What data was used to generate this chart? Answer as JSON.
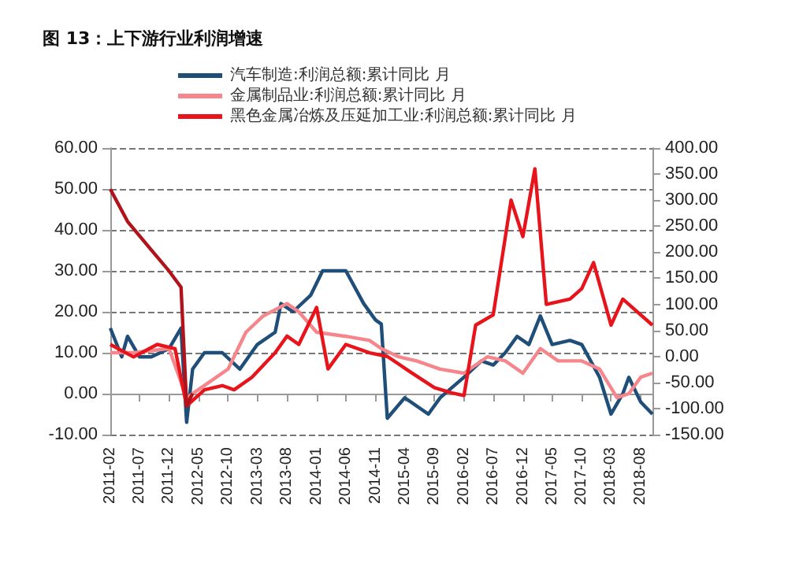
{
  "chart_data": {
    "type": "line",
    "title": "图 13：上下游行业利润增速",
    "xlim": [
      "2011-02",
      "2018-10"
    ],
    "xticks": [
      "2011-02",
      "2011-07",
      "2011-12",
      "2012-05",
      "2012-10",
      "2013-03",
      "2013-08",
      "2014-01",
      "2014-06",
      "2014-11",
      "2015-04",
      "2015-09",
      "2016-02",
      "2016-07",
      "2016-12",
      "2017-05",
      "2017-10",
      "2018-03",
      "2018-08"
    ],
    "ylim": [
      -10,
      60
    ],
    "yticks": [
      {
        "value": -10,
        "label": "-10.00"
      },
      {
        "value": 0,
        "label": "0.00"
      },
      {
        "value": 10,
        "label": "10.00"
      },
      {
        "value": 20,
        "label": "20.00"
      },
      {
        "value": 30,
        "label": "30.00"
      },
      {
        "value": 40,
        "label": "40.00"
      },
      {
        "value": 50,
        "label": "50.00"
      },
      {
        "value": 60,
        "label": "60.00"
      }
    ],
    "y2lim": [
      -150,
      400
    ],
    "y2ticks": [
      {
        "value": -150,
        "label": "-150.00"
      },
      {
        "value": -100,
        "label": "-100.00"
      },
      {
        "value": -50,
        "label": "-50.00"
      },
      {
        "value": 0,
        "label": "0.00"
      },
      {
        "value": 50,
        "label": "50.00"
      },
      {
        "value": 100,
        "label": "100.00"
      },
      {
        "value": 150,
        "label": "150.00"
      },
      {
        "value": 200,
        "label": "200.00"
      },
      {
        "value": 250,
        "label": "250.00"
      },
      {
        "value": 300,
        "label": "300.00"
      },
      {
        "value": 350,
        "label": "350.00"
      },
      {
        "value": 400,
        "label": "400.00"
      }
    ],
    "grid": "y",
    "legend": "top",
    "marker": "none",
    "line_style": "solid",
    "series": [
      {
        "name": "汽车制造:利润总额:累计同比 月",
        "color": "#1f4e79",
        "x": [
          "2011-02",
          "2011-04",
          "2011-05",
          "2011-07",
          "2011-09",
          "2011-12",
          "2012-02",
          "2012-03",
          "2012-04",
          "2012-06",
          "2012-09",
          "2012-12",
          "2013-03",
          "2013-06",
          "2013-07",
          "2013-09",
          "2013-12",
          "2014-02",
          "2014-06",
          "2014-09",
          "2014-11",
          "2014-12",
          "2015-01",
          "2015-04",
          "2015-08",
          "2015-10",
          "2016-02",
          "2016-05",
          "2016-07",
          "2016-09",
          "2016-11",
          "2017-01",
          "2017-03",
          "2017-05",
          "2017-08",
          "2017-10",
          "2018-01",
          "2018-03",
          "2018-05",
          "2018-06",
          "2018-08",
          "2018-10"
        ],
        "values": [
          16,
          9,
          14,
          9,
          9,
          11,
          16,
          -7,
          6,
          10,
          10,
          6,
          12,
          15,
          22,
          20,
          24,
          30,
          30,
          22,
          18,
          17,
          -6,
          -1,
          -5,
          -1,
          4,
          8,
          7,
          10,
          14,
          12,
          19,
          12,
          13,
          12,
          4,
          -5,
          0,
          4,
          -2,
          -5
        ]
      },
      {
        "name": "金属制品业:利润总额:累计同比 月",
        "color": "#f4868c",
        "x": [
          "2011-02",
          "2011-06",
          "2011-12",
          "2012-03",
          "2012-06",
          "2012-10",
          "2013-01",
          "2013-04",
          "2013-08",
          "2013-10",
          "2014-01",
          "2014-06",
          "2014-10",
          "2014-12",
          "2015-03",
          "2015-06",
          "2015-10",
          "2016-02",
          "2016-06",
          "2016-09",
          "2016-12",
          "2017-03",
          "2017-06",
          "2017-10",
          "2018-01",
          "2018-04",
          "2018-06",
          "2018-08",
          "2018-10"
        ],
        "values": [
          10,
          10,
          11,
          -1,
          2,
          6,
          15,
          19,
          22,
          20,
          15,
          14,
          13,
          11,
          9,
          8,
          6,
          5,
          9,
          8,
          5,
          11,
          8,
          8,
          6,
          -1,
          0,
          4,
          5
        ]
      },
      {
        "name": "黑色金属冶炼及压延加工业:利润总额:累计同比 月",
        "color": "#e8141b",
        "axis": "y2",
        "x": [
          "2011-02",
          "2011-06",
          "2011-10",
          "2012-01",
          "2012-03",
          "2012-06",
          "2012-09",
          "2012-11",
          "2013-02",
          "2013-06",
          "2013-08",
          "2013-10",
          "2014-01",
          "2014-03",
          "2014-06",
          "2014-10",
          "2015-01",
          "2015-05",
          "2015-09",
          "2015-12",
          "2016-02",
          "2016-04",
          "2016-07",
          "2016-10",
          "2016-12",
          "2017-02",
          "2017-04",
          "2017-08",
          "2017-10",
          "2017-12",
          "2018-03",
          "2018-05",
          "2018-08",
          "2018-10"
        ],
        "values": [
          23,
          -1,
          23,
          15,
          -95,
          -64,
          -56,
          -64,
          -40,
          7,
          39,
          23,
          94,
          -24,
          23,
          7,
          0,
          -30,
          -60,
          -70,
          -75,
          60,
          80,
          300,
          230,
          360,
          100,
          110,
          130,
          180,
          60,
          110,
          80,
          60
        ]
      },
      {
        "color": "#b0141a",
        "axis": "y2",
        "x": [
          "2011-02",
          "2011-05",
          "2011-09",
          "2011-12",
          "2012-02",
          "2012-03",
          "2012-04"
        ],
        "values": [
          321,
          259,
          204,
          164,
          133,
          -95,
          -71
        ]
      }
    ]
  }
}
